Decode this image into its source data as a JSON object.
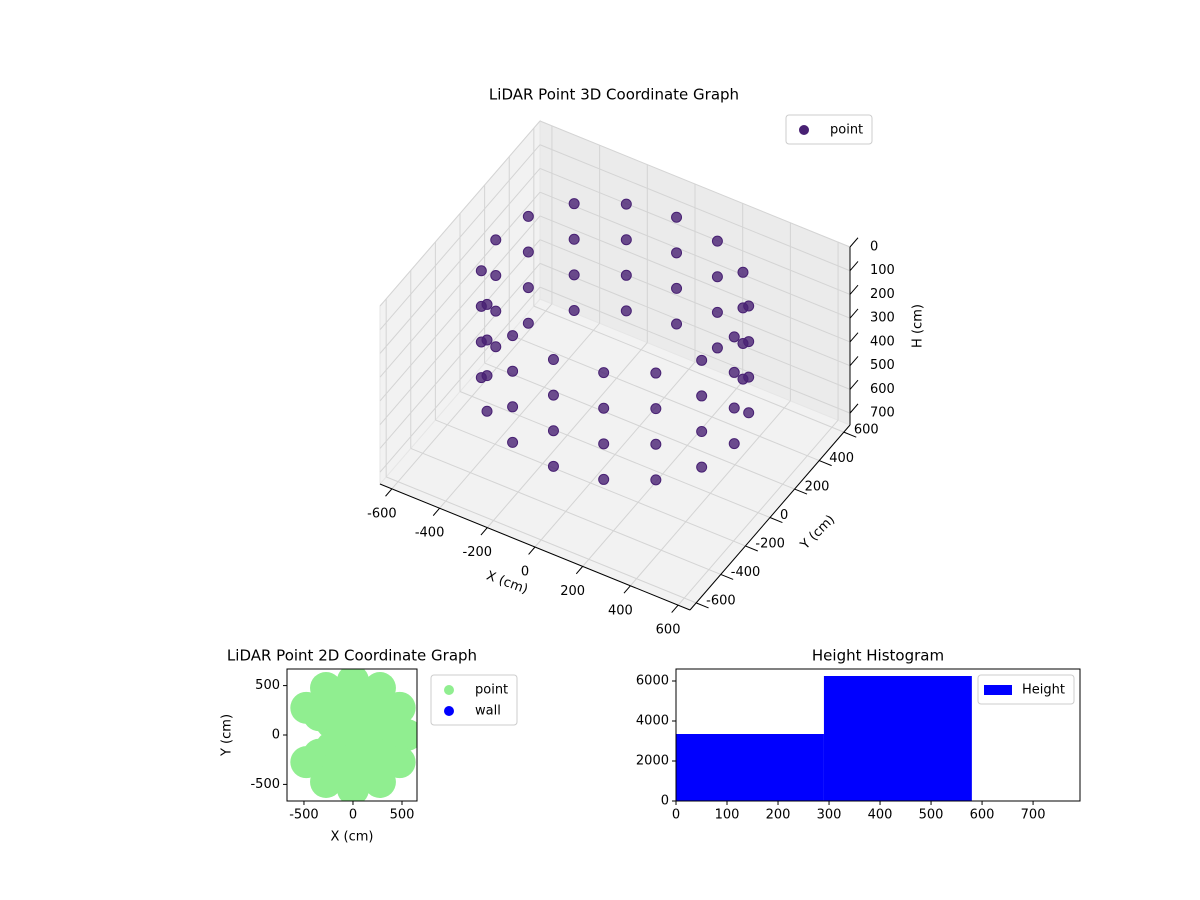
{
  "chart_data": [
    {
      "type": "scatter3d",
      "title": "LiDAR Point 3D Coordinate Graph",
      "xlabel": "X (cm)",
      "ylabel": "Y (cm)",
      "zlabel": "H (cm)",
      "xlim": [
        -650,
        650
      ],
      "ylim": [
        -650,
        650
      ],
      "zlim": [
        750,
        0
      ],
      "xticks": [
        -600,
        -400,
        -200,
        0,
        200,
        400,
        600
      ],
      "yticks": [
        -600,
        -400,
        -200,
        0,
        200,
        400,
        600
      ],
      "zticks": [
        0,
        100,
        200,
        300,
        400,
        500,
        600,
        700
      ],
      "legend": "upper right",
      "grid": true,
      "series": [
        {
          "name": "point",
          "color": "#482173",
          "x": [
            500,
            462,
            354,
            191,
            0,
            -191,
            -354,
            -462,
            -500,
            -462,
            -354,
            -191,
            0,
            191,
            354,
            462,
            500,
            462,
            354,
            191,
            0,
            -191,
            -354,
            -462,
            -500,
            -462,
            -354,
            -191,
            0,
            191,
            354,
            462,
            500,
            462,
            354,
            191,
            0,
            -191,
            -354,
            -462,
            -500,
            -462,
            -354,
            -191,
            0,
            191,
            354,
            462,
            500,
            462,
            354,
            191,
            0,
            -191,
            -354,
            -462,
            -500,
            -462,
            -354,
            -191,
            0,
            191,
            354,
            462
          ],
          "y": [
            0,
            191,
            354,
            462,
            500,
            462,
            354,
            191,
            0,
            -191,
            -354,
            -462,
            -500,
            -462,
            -354,
            -191,
            0,
            191,
            354,
            462,
            500,
            462,
            354,
            191,
            0,
            -191,
            -354,
            -462,
            -500,
            -462,
            -354,
            -191,
            0,
            191,
            354,
            462,
            500,
            462,
            354,
            191,
            0,
            -191,
            -354,
            -462,
            -500,
            -462,
            -354,
            -191,
            0,
            191,
            354,
            462,
            500,
            462,
            354,
            191,
            0,
            -191,
            -354,
            -462,
            -500,
            -462,
            -354,
            -191
          ],
          "z": [
            50,
            50,
            50,
            50,
            50,
            50,
            50,
            50,
            50,
            50,
            50,
            50,
            50,
            50,
            50,
            50,
            200,
            200,
            200,
            200,
            200,
            200,
            200,
            200,
            200,
            200,
            200,
            200,
            200,
            200,
            200,
            200,
            350,
            350,
            350,
            350,
            350,
            350,
            350,
            350,
            350,
            350,
            350,
            350,
            350,
            350,
            350,
            350,
            500,
            500,
            500,
            500,
            500,
            500,
            500,
            500,
            500,
            500,
            500,
            500,
            500,
            500,
            500,
            500
          ]
        }
      ]
    },
    {
      "type": "scatter",
      "title": "LiDAR Point 2D Coordinate Graph",
      "xlabel": "X (cm)",
      "ylabel": "Y (cm)",
      "xlim": [
        -673,
        653
      ],
      "ylim": [
        -668,
        668
      ],
      "xticks": [
        -500,
        0,
        500
      ],
      "yticks": [
        -500,
        0,
        500
      ],
      "legend": "outside right",
      "series": [
        {
          "name": "point",
          "color": "#90ee90",
          "x": [
            100,
            87,
            50,
            0,
            -50,
            -87,
            -87,
            -50,
            0,
            50,
            87,
            250,
            217,
            125,
            0,
            -125,
            -217,
            -217,
            -125,
            0,
            125,
            217,
            400,
            346,
            200,
            0,
            -200,
            -346,
            -346,
            -200,
            0,
            200,
            346,
            550,
            476,
            275,
            0,
            -275,
            -476,
            -476,
            -275,
            0,
            275,
            476
          ],
          "y": [
            0,
            50,
            87,
            100,
            87,
            50,
            -50,
            -87,
            -100,
            -87,
            -50,
            0,
            125,
            217,
            250,
            217,
            125,
            -125,
            -217,
            -250,
            -217,
            -125,
            0,
            200,
            346,
            400,
            346,
            200,
            -200,
            -346,
            -400,
            -346,
            -200,
            0,
            275,
            476,
            550,
            476,
            275,
            -275,
            -476,
            -550,
            -476,
            -275
          ]
        },
        {
          "name": "wall",
          "color": "#0000ff",
          "x": [],
          "y": []
        }
      ]
    },
    {
      "type": "histogram",
      "title": "Height Histogram",
      "bins": [
        0,
        290,
        580
      ],
      "xlim": [
        0,
        792
      ],
      "ylim": [
        0,
        6600
      ],
      "xticks": [
        0,
        100,
        200,
        300,
        400,
        500,
        600,
        700
      ],
      "yticks": [
        0,
        2000,
        4000,
        6000
      ],
      "legend": "upper right",
      "series": [
        {
          "name": "Height",
          "color": "#0000ff",
          "values": [
            3350,
            6250
          ]
        }
      ]
    }
  ]
}
